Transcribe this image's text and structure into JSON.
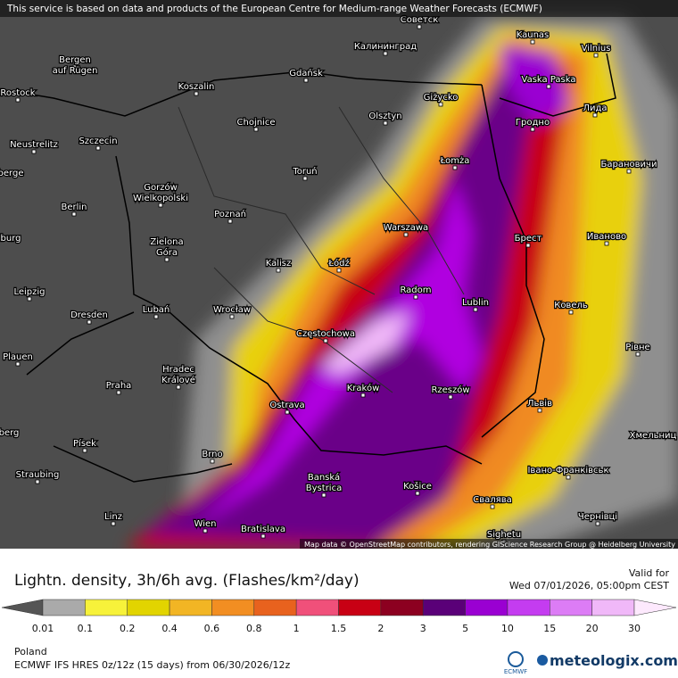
{
  "header": {
    "notice": "This service is based on data and products of the European Centre for Medium-range Weather Forecasts (ECMWF)"
  },
  "map": {
    "attribution": "Map data © OpenStreetMap contributors, rendering GIScience Research Group @ Heidelberg University",
    "cities": [
      "Советск",
      "Kaunas",
      "Vilnius",
      "Калининград",
      "Bergen",
      "auf Rügen",
      "Rostock",
      "Koszalin",
      "Gdańsk",
      "Vaska Paska",
      "Giżycko",
      "Olsztyn",
      "Гродно",
      "Лида",
      "Neustrelitz",
      "Szczecin",
      "Chojnice",
      "Gorzów",
      "Wielkopolski",
      "Łomża",
      "Барановичи",
      "Toruń",
      "berge",
      "Berlin",
      "Poznań",
      "Warszawa",
      "Брест",
      "Иваново",
      "burg",
      "Zielona",
      "Góra",
      "Kalisz",
      "Łódź",
      "Leipzig",
      "Radom",
      "Lublin",
      "Ковель",
      "Dresden",
      "Lubań",
      "Wrocław",
      "Częstochowa",
      "Plauen",
      "Hradec",
      "Králové",
      "Praha",
      "Kraków",
      "Rzeszów",
      "Рівне",
      "Ostrava",
      "Львів",
      "berg",
      "Хмельниц",
      "Písek",
      "Brno",
      "Banská",
      "Bystrica",
      "Košice",
      "Івано-Франківськ",
      "Straubing",
      "Свалява",
      "Linz",
      "Wien",
      "Bratislava",
      "Чернівці",
      "Sighetu"
    ]
  },
  "legend": {
    "title": "Lightn. density, 3h/6h avg. (Flashes/km²/day)",
    "valid_label": "Valid for",
    "valid_time": "Wed 07/01/2026, 05:00pm CEST",
    "ticks": [
      0.01,
      0.1,
      0.2,
      0.4,
      0.6,
      0.8,
      1,
      1.5,
      2,
      3,
      5,
      10,
      15,
      20,
      30
    ],
    "colors": [
      "#555555",
      "#aaaaaa",
      "#f7f23a",
      "#e2d400",
      "#f2b524",
      "#f28e22",
      "#e8621e",
      "#f0507a",
      "#c80014",
      "#8c0020",
      "#5a0078",
      "#9a00d2",
      "#c43cf0",
      "#dc7cf5",
      "#f0b8f8",
      "#fde9fd"
    ]
  },
  "footer": {
    "region": "Poland",
    "model": "ECMWF IFS HRES 0z/12z (15 days) from 06/30/2026/12z",
    "ecmwf_logo": "ECMWF",
    "brand": "meteologix.com"
  }
}
